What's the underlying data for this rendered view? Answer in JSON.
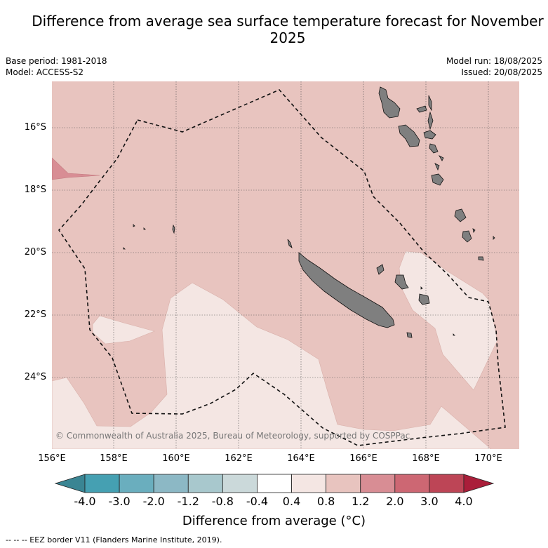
{
  "title": "Difference from average sea surface temperature forecast for November 2025",
  "meta": {
    "base_period": "Base period: 1981-2018",
    "model": "Model: ACCESS-S2",
    "model_run": "Model run: 18/08/2025",
    "issued": "Issued: 20/08/2025"
  },
  "copyright": "© Commonwealth of Australia 2025, Bureau of Meteorology, supported by COSPPac",
  "lat_labels": [
    "16°S",
    "18°S",
    "20°S",
    "22°S",
    "24°S"
  ],
  "lon_labels": [
    "156°E",
    "158°E",
    "160°E",
    "162°E",
    "164°E",
    "166°E",
    "168°E",
    "170°E"
  ],
  "colorbar": {
    "ticks": [
      "-4.0",
      "-3.0",
      "-2.0",
      "-1.2",
      "-0.8",
      "-0.4",
      "0.4",
      "0.8",
      "1.2",
      "2.0",
      "3.0",
      "4.0"
    ],
    "colors": [
      "#3a8593",
      "#45a0b2",
      "#6aaebe",
      "#8cb8c5",
      "#a8c8cd",
      "#cbd9da",
      "#ffffff",
      "#f4e6e3",
      "#e8c4bf",
      "#d88d94",
      "#cd6773",
      "#bd4556",
      "#aa1e3a"
    ],
    "title": "Difference from average (°C)"
  },
  "footnote": "-- -- -- EEZ border V11 (Flanders Marine Institute, 2019).",
  "map_colors": {
    "warm": "#e8c4bf",
    "near_avg": "#f4e6e3",
    "hot": "#d88d94",
    "land": "#7f7f7f"
  }
}
